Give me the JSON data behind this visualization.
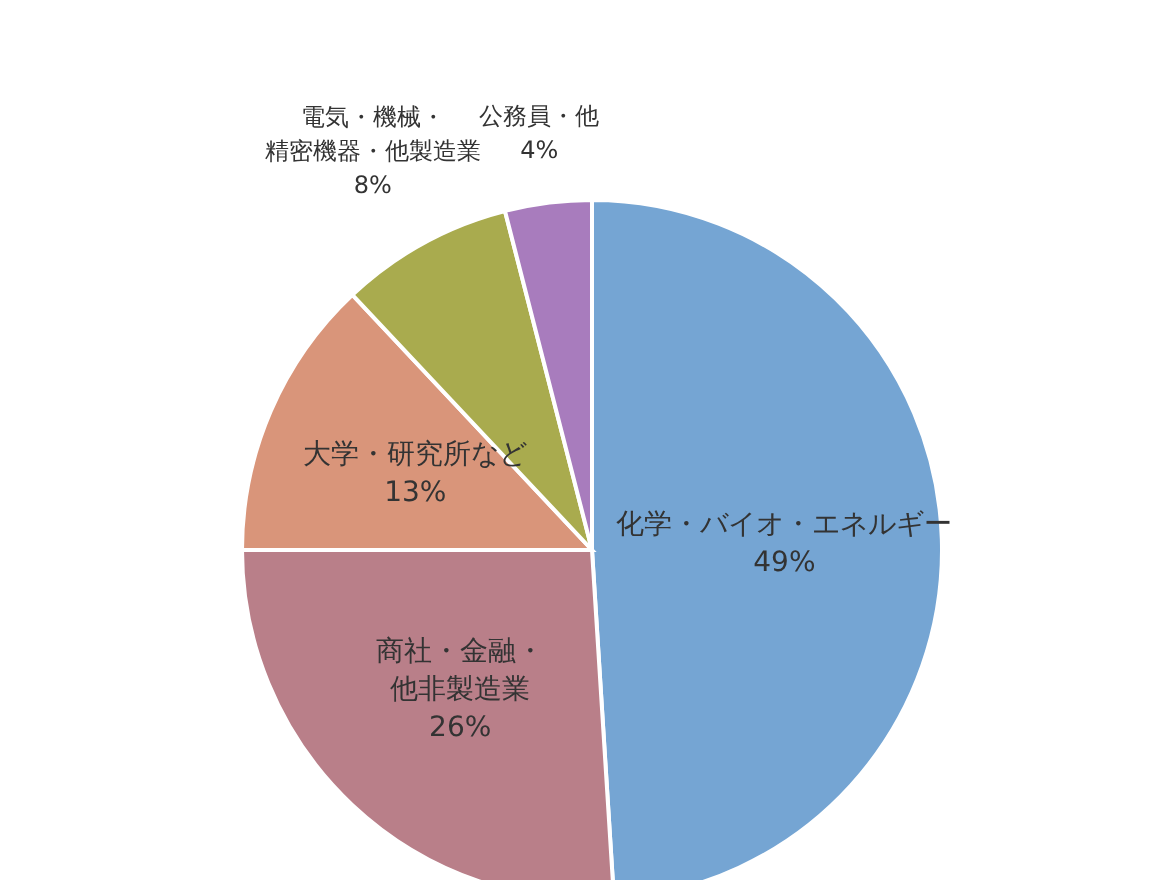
{
  "chart_data": {
    "type": "pie",
    "categories": [
      "化学・バイオ・エネルギー",
      "商社・金融・他非製造業",
      "大学・研究所など",
      "電気・機械・精密機器・他製造業",
      "公務員・他"
    ],
    "values": [
      49,
      26,
      13,
      8,
      4
    ],
    "value_labels": [
      "49%",
      "26%",
      "13%",
      "8%",
      "4%"
    ],
    "colors": [
      "#75a5d3",
      "#b97f89",
      "#d9957a",
      "#a9ab4e",
      "#a87cbd"
    ]
  }
}
